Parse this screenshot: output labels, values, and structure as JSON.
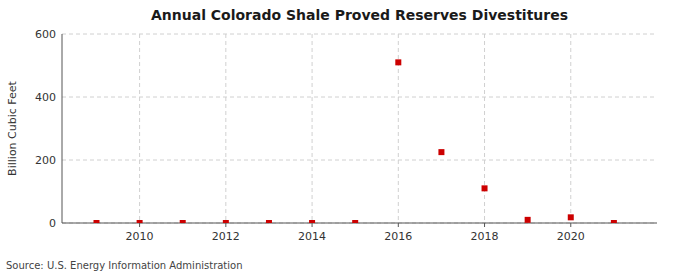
{
  "chart_data": {
    "type": "scatter",
    "title": "Annual Colorado Shale Proved Reserves Divestitures",
    "ylabel": "Billion Cubic Feet",
    "source": "Source: U.S. Energy Information Administration",
    "x": [
      2009,
      2010,
      2011,
      2012,
      2013,
      2014,
      2015,
      2016,
      2017,
      2018,
      2019,
      2020,
      2021
    ],
    "values": [
      0,
      0,
      0,
      0,
      0,
      0,
      0,
      510,
      225,
      110,
      10,
      18,
      0
    ],
    "color": "#cc0000",
    "marker": "square",
    "xlim": [
      2008.2,
      2022.0
    ],
    "xticks": [
      2010,
      2012,
      2014,
      2016,
      2018,
      2020
    ],
    "ylim": [
      0,
      600
    ],
    "yticks": [
      0,
      200,
      400,
      600
    ],
    "grid": true
  }
}
